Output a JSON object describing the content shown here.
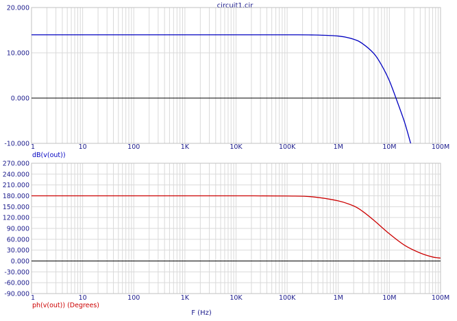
{
  "title": "circuit1.cir",
  "xlabel": "F (Hz)",
  "colors": {
    "axis_text": "#1a1a8c",
    "grid": "#d9d9d9",
    "frame": "#c0c0c0",
    "zero_line": "#000000",
    "magnitude_trace": "#0000c0",
    "phase_trace": "#cc0000"
  },
  "chart_data": [
    {
      "type": "line",
      "x_scale": "log",
      "xlim": [
        1,
        100000000
      ],
      "ylim": [
        -10,
        20
      ],
      "x_ticks": [
        {
          "value": 1,
          "label": "1"
        },
        {
          "value": 10,
          "label": "10"
        },
        {
          "value": 100,
          "label": "100"
        },
        {
          "value": 1000,
          "label": "1K"
        },
        {
          "value": 10000,
          "label": "10K"
        },
        {
          "value": 100000,
          "label": "100K"
        },
        {
          "value": 1000000,
          "label": "1M"
        },
        {
          "value": 10000000,
          "label": "10M"
        },
        {
          "value": 100000000,
          "label": "100M"
        }
      ],
      "y_ticks": [
        {
          "value": 20,
          "label": "20.000"
        },
        {
          "value": 10,
          "label": "10.000"
        },
        {
          "value": 0,
          "label": "0.000"
        },
        {
          "value": -10,
          "label": "-10.000"
        }
      ],
      "grid": true,
      "series": [
        {
          "name": "dB(v(out))",
          "x": [
            1,
            10,
            100,
            1000,
            10000,
            100000,
            300000,
            1000000,
            2000000,
            3000000,
            5000000,
            7000000,
            10000000,
            15000000,
            20000000,
            26000000
          ],
          "y": [
            13.98,
            13.98,
            13.98,
            13.98,
            13.98,
            13.98,
            13.95,
            13.7,
            13.0,
            12.0,
            9.8,
            7.3,
            3.8,
            -1.5,
            -5.5,
            -10
          ]
        }
      ]
    },
    {
      "type": "line",
      "x_scale": "log",
      "xlim": [
        1,
        100000000
      ],
      "ylim": [
        -90,
        270
      ],
      "x_ticks": [
        {
          "value": 1,
          "label": "1"
        },
        {
          "value": 10,
          "label": "10"
        },
        {
          "value": 100,
          "label": "100"
        },
        {
          "value": 1000,
          "label": "1K"
        },
        {
          "value": 10000,
          "label": "10K"
        },
        {
          "value": 100000,
          "label": "100K"
        },
        {
          "value": 1000000,
          "label": "1M"
        },
        {
          "value": 10000000,
          "label": "10M"
        },
        {
          "value": 100000000,
          "label": "100M"
        }
      ],
      "y_ticks": [
        {
          "value": 270,
          "label": "270.000"
        },
        {
          "value": 240,
          "label": "240.000"
        },
        {
          "value": 210,
          "label": "210.000"
        },
        {
          "value": 180,
          "label": "180.000"
        },
        {
          "value": 150,
          "label": "150.000"
        },
        {
          "value": 120,
          "label": "120.000"
        },
        {
          "value": 90,
          "label": "90.000"
        },
        {
          "value": 60,
          "label": "60.000"
        },
        {
          "value": 30,
          "label": "30.000"
        },
        {
          "value": 0,
          "label": "0.000"
        },
        {
          "value": -30,
          "label": "-30.000"
        },
        {
          "value": -60,
          "label": "-60.000"
        },
        {
          "value": -90,
          "label": "-90.000"
        }
      ],
      "grid": true,
      "series": [
        {
          "name": "ph(v(out)) (Degrees)",
          "x": [
            1,
            10,
            100,
            1000,
            10000,
            100000,
            300000,
            1000000,
            2000000,
            3000000,
            5000000,
            10000000,
            20000000,
            40000000,
            70000000,
            100000000
          ],
          "y": [
            180,
            180,
            180,
            180,
            180,
            179.5,
            177.5,
            166,
            152,
            137,
            112,
            75,
            43,
            22,
            11,
            8
          ]
        }
      ]
    }
  ]
}
